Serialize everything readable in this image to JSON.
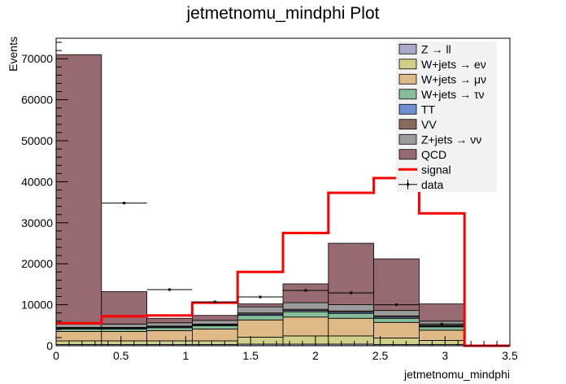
{
  "chart_data": {
    "type": "bar",
    "title": "jetmetnomu_mindphi Plot",
    "xlabel": "jetmetnomu_mindphi",
    "ylabel": "Events",
    "xlim": [
      0,
      3.5
    ],
    "ylim": [
      0,
      75000
    ],
    "bin_edges": [
      0,
      0.35,
      0.7,
      1.05,
      1.4,
      1.75,
      2.1,
      2.45,
      2.8,
      3.15,
      3.5
    ],
    "x_ticks": [
      0,
      0.5,
      1,
      1.5,
      2,
      2.5,
      3,
      3.5
    ],
    "x_tick_labels": [
      "0",
      "0.5",
      "1",
      "1.5",
      "2",
      "2.5",
      "3",
      "3.5"
    ],
    "y_ticks": [
      0,
      10000,
      20000,
      30000,
      40000,
      50000,
      60000,
      70000
    ],
    "y_tick_labels": [
      "0",
      "10000",
      "20000",
      "30000",
      "40000",
      "50000",
      "60000",
      "70000"
    ],
    "grid": false,
    "legend_position": "top-right",
    "stack_order": [
      "Z → ll",
      "W+jets → eν",
      "W+jets → μν",
      "W+jets → τν",
      "TT",
      "VV",
      "Z+jets → νν",
      "QCD"
    ],
    "series": [
      {
        "name": "Z → ll",
        "kind": "stack",
        "color": "#a9a9c9",
        "values": [
          300,
          300,
          300,
          300,
          400,
          400,
          400,
          300,
          300,
          0
        ]
      },
      {
        "name": "W+jets → eν",
        "kind": "stack",
        "color": "#cfcf87",
        "values": [
          900,
          900,
          900,
          900,
          1700,
          2000,
          2000,
          1600,
          1000,
          0
        ]
      },
      {
        "name": "W+jets → μν",
        "kind": "stack",
        "color": "#dfb987",
        "values": [
          2300,
          2300,
          2500,
          2900,
          4200,
          4600,
          4300,
          3800,
          2500,
          0
        ]
      },
      {
        "name": "W+jets → τν",
        "kind": "stack",
        "color": "#86bd9a",
        "values": [
          600,
          600,
          700,
          800,
          1100,
          1300,
          1200,
          1000,
          800,
          0
        ]
      },
      {
        "name": "TT",
        "kind": "stack",
        "color": "#6f8fcf",
        "values": [
          200,
          200,
          200,
          200,
          300,
          300,
          300,
          300,
          200,
          0
        ]
      },
      {
        "name": "VV",
        "kind": "stack",
        "color": "#8a6a5a",
        "values": [
          200,
          200,
          200,
          200,
          300,
          300,
          300,
          300,
          200,
          0
        ]
      },
      {
        "name": "Z+jets → νν",
        "kind": "stack",
        "color": "#9c9c9c",
        "values": [
          800,
          800,
          800,
          900,
          1500,
          1600,
          1500,
          1300,
          1000,
          0
        ]
      },
      {
        "name": "QCD",
        "kind": "stack",
        "color": "#966a70",
        "values": [
          65700,
          7900,
          1100,
          1200,
          700,
          4600,
          15000,
          12600,
          4200,
          0
        ]
      },
      {
        "name": "signal",
        "kind": "line",
        "color": "#ff0000",
        "values": [
          5500,
          7200,
          7400,
          10500,
          18000,
          27500,
          37300,
          40900,
          32300,
          0
        ]
      },
      {
        "name": "data",
        "kind": "points",
        "color": "#000000",
        "values": [
          null,
          34800,
          13700,
          10700,
          11900,
          13500,
          12900,
          10000,
          5300,
          null
        ]
      }
    ]
  }
}
